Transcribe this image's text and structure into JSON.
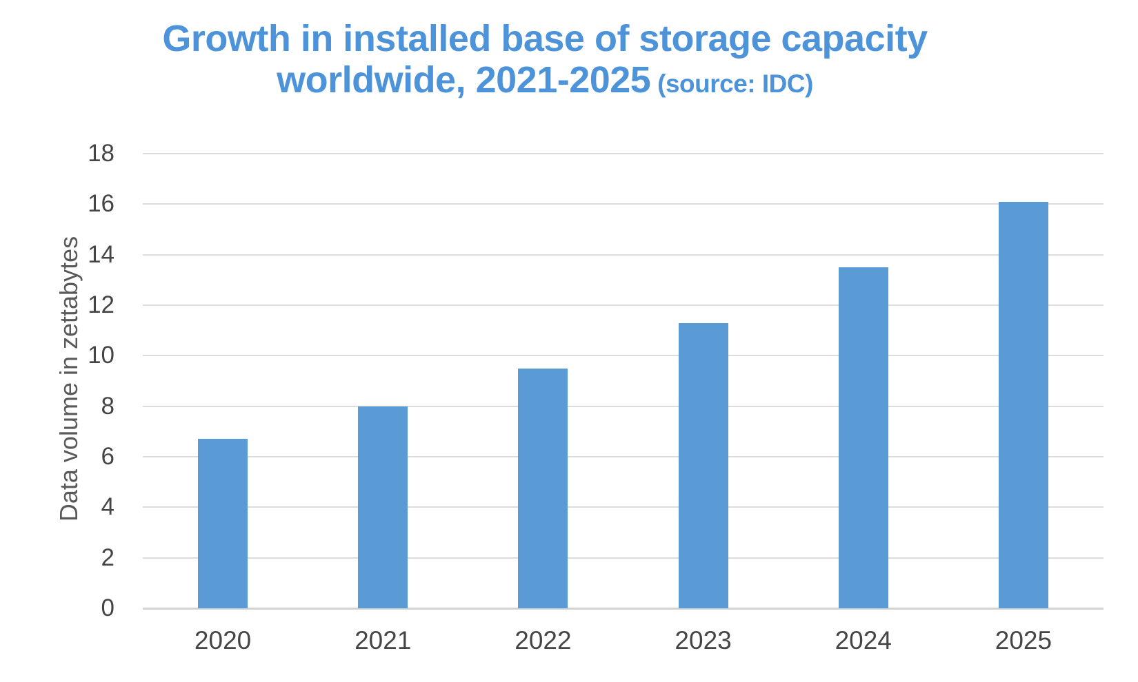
{
  "title": {
    "line1": "Growth in installed base of storage capacity",
    "line2": "worldwide, 2021-2025",
    "source_suffix": " (source: IDC)",
    "color": "#4D93D9"
  },
  "chart_data": {
    "type": "bar",
    "categories": [
      "2020",
      "2021",
      "2022",
      "2023",
      "2024",
      "2025"
    ],
    "values": [
      6.7,
      8.0,
      9.5,
      11.3,
      13.5,
      16.1
    ],
    "title": "Growth in installed base of storage capacity worldwide, 2021-2025 (source: IDC)",
    "xlabel": "",
    "ylabel": "Data volume in zettabytes",
    "ylim": [
      0,
      18
    ],
    "ytick_step": 2,
    "grid": true,
    "legend": false,
    "bar_color": "#5B9BD5",
    "gridline_color": "#DCDCDC",
    "axis_line_color": "#D3D3D3",
    "tick_label_color": "#454545",
    "axis_title_color": "#595959"
  }
}
